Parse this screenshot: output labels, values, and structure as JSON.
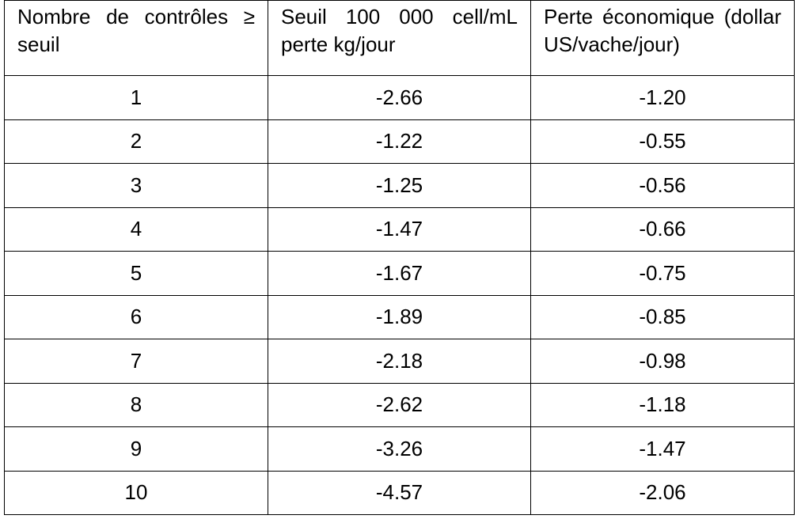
{
  "table": {
    "header": [
      "Nombre de contrôles ≥ seuil",
      "Seuil 100 000 cell/mL perte kg/jour",
      "Perte économique (dollar US/vache/jour)"
    ],
    "rows": [
      [
        "1",
        "-2.66",
        "-1.20"
      ],
      [
        "2",
        "-1.22",
        "-0.55"
      ],
      [
        "3",
        "-1.25",
        "-0.56"
      ],
      [
        "4",
        "-1.47",
        "-0.66"
      ],
      [
        "5",
        "-1.67",
        "-0.75"
      ],
      [
        "6",
        "-1.89",
        "-0.85"
      ],
      [
        "7",
        "-2.18",
        "-0.98"
      ],
      [
        "8",
        "-2.62",
        "-1.18"
      ],
      [
        "9",
        "-3.26",
        "-1.47"
      ],
      [
        "10",
        "-4.57",
        "-2.06"
      ]
    ]
  }
}
